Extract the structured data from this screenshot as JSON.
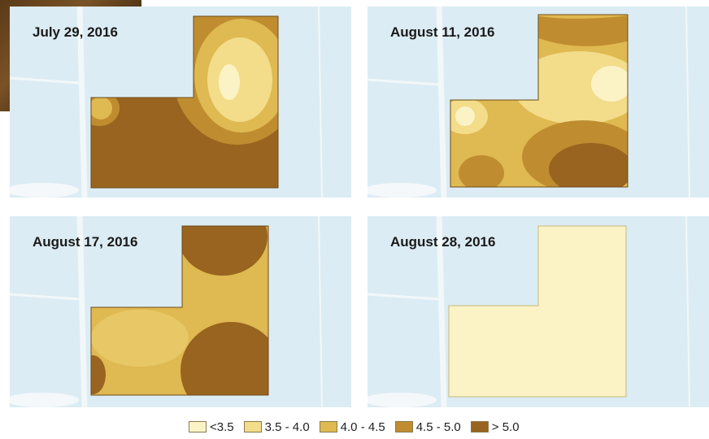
{
  "panels": [
    {
      "title": "July 29, 2016"
    },
    {
      "title": "August 11, 2016"
    },
    {
      "title": "August 17, 2016"
    },
    {
      "title": "August 28, 2016"
    }
  ],
  "legend": [
    {
      "label": "<3.5",
      "color": "#fbf3c6"
    },
    {
      "label": "3.5 - 4.0",
      "color": "#f3dc8a"
    },
    {
      "label": "4.0 - 4.5",
      "color": "#dfb951"
    },
    {
      "label": "4.5 - 5.0",
      "color": "#bf8d30"
    },
    {
      "label": "> 5.0",
      "color": "#98641f"
    }
  ]
}
